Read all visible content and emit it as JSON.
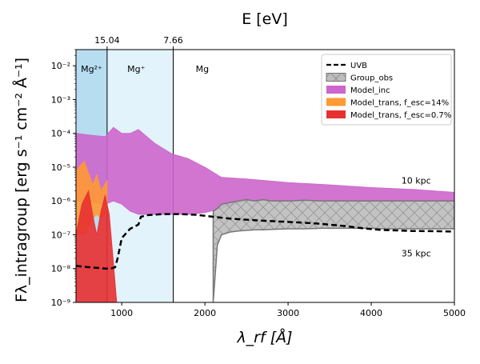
{
  "chart_data": {
    "type": "area",
    "xlabel": "λ_rf [Å]",
    "ylabel": "Fλ_intragroup [erg s⁻¹ cm⁻² Å⁻¹]",
    "top_axis_label": "E [eV]",
    "top_ticks": [
      {
        "label": "15.04",
        "x": 824
      },
      {
        "label": "7.66",
        "x": 1619
      }
    ],
    "xlim": [
      450,
      5000
    ],
    "ylim": [
      1e-09,
      0.03
    ],
    "yscale": "log",
    "x_ticks": [
      1000,
      2000,
      3000,
      4000,
      5000
    ],
    "y_ticks": [
      1e-09,
      1e-08,
      1e-07,
      1e-06,
      1e-05,
      0.0001,
      0.001,
      0.01
    ],
    "y_tick_labels": [
      "10⁻⁹",
      "10⁻⁸",
      "10⁻⁷",
      "10⁻⁶",
      "10⁻⁵",
      "10⁻⁴",
      "10⁻³",
      "10⁻²"
    ],
    "grid": false,
    "legend_position": "top-right",
    "regions": [
      {
        "label": "Mg²⁺",
        "x": [
          450,
          824
        ],
        "color": "#b7ddf0"
      },
      {
        "label": "Mg⁺",
        "x": [
          824,
          1619
        ],
        "color": "#e3f3fb"
      },
      {
        "label": "Mg",
        "x": [
          1619,
          5000
        ],
        "color": "#ffffff"
      }
    ],
    "series": [
      {
        "name": "UVB",
        "style": "dashed",
        "color": "#000000",
        "x": [
          450,
          600,
          700,
          800,
          870,
          920,
          950,
          1000,
          1100,
          1200,
          1230,
          1300,
          1500,
          1700,
          1900,
          2100,
          2300,
          2500,
          2700,
          3000,
          3300,
          3500,
          3700,
          3900,
          4100,
          4300,
          4500,
          4700,
          5000
        ],
        "y": [
          1.2e-08,
          1.1e-08,
          1.05e-08,
          1e-08,
          1e-08,
          1.1e-08,
          2e-08,
          8e-08,
          1.5e-07,
          2e-07,
          3.4e-07,
          3.8e-07,
          4.1e-07,
          4.1e-07,
          3.9e-07,
          3.4e-07,
          3e-07,
          2.8e-07,
          2.6e-07,
          2.4e-07,
          2.2e-07,
          2e-07,
          1.8e-07,
          1.55e-07,
          1.4e-07,
          1.35e-07,
          1.3e-07,
          1.28e-07,
          1.25e-07
        ]
      },
      {
        "name": "Group_obs",
        "style": "hatched-band",
        "color": "#b0b0b0",
        "x": [
          2100,
          2150,
          2200,
          2300,
          2400,
          2500,
          2600,
          2700,
          2800,
          3000,
          3200,
          3400,
          3600,
          3800,
          4000,
          4200,
          4400,
          4600,
          4800,
          5000
        ],
        "upper": [
          5e-07,
          6e-07,
          8e-07,
          9e-07,
          1e-06,
          1.1e-06,
          1e-06,
          1.1e-06,
          1e-06,
          1e-06,
          1.05e-06,
          1e-06,
          1e-06,
          1e-06,
          1e-06,
          1e-06,
          1e-06,
          1e-06,
          1e-06,
          1e-06
        ],
        "lower": [
          1e-09,
          5e-08,
          1e-07,
          1.2e-07,
          1.3e-07,
          1.35e-07,
          1.4e-07,
          1.4e-07,
          1.45e-07,
          1.5e-07,
          1.5e-07,
          1.55e-07,
          1.55e-07,
          1.55e-07,
          1.55e-07,
          1.5e-07,
          1.5e-07,
          1.5e-07,
          1.5e-07,
          1.5e-07
        ]
      },
      {
        "name": "Model_inc",
        "style": "band",
        "color": "#cc66cc",
        "x": [
          450,
          600,
          800,
          900,
          1000,
          1100,
          1200,
          1400,
          1600,
          1800,
          2000,
          2200,
          2500,
          3000,
          3500,
          4000,
          4500,
          5000
        ],
        "upper": [
          0.0001,
          9e-05,
          8e-05,
          0.00015,
          0.0001,
          0.0001,
          0.00013,
          5e-05,
          2.5e-05,
          1.8e-05,
          1e-05,
          5e-06,
          4.5e-06,
          3.5e-06,
          3e-06,
          2.5e-06,
          2.2e-06,
          1.8e-06
        ],
        "lower": [
          1e-06,
          9e-07,
          8e-07,
          1e-06,
          8e-07,
          5e-07,
          4e-07,
          4e-07,
          4e-07,
          4e-07,
          4.5e-07,
          6e-07,
          1e-06,
          1e-06,
          1e-06,
          1e-06,
          1e-06,
          1e-06
        ]
      },
      {
        "name": "Model_trans, f_esc=14%",
        "style": "band",
        "color": "#ff9933",
        "x": [
          450,
          550,
          650,
          700,
          750,
          824
        ],
        "upper": [
          8e-06,
          1.5e-05,
          3e-06,
          6e-06,
          2e-06,
          4e-06
        ],
        "lower": [
          1e-07,
          1e-07,
          3e-07,
          4e-07,
          3e-07,
          5e-07
        ]
      },
      {
        "name": "Model_trans, f_esc=0.7%",
        "style": "band",
        "color": "#e83030",
        "x": [
          450,
          520,
          600,
          660,
          700,
          750,
          800,
          850,
          900,
          940
        ],
        "upper": [
          1e-07,
          8e-07,
          2e-06,
          3e-07,
          1e-07,
          5e-07,
          1.5e-06,
          4e-07,
          1.5e-08,
          1e-09
        ],
        "lower": [
          1e-09,
          1e-09,
          1e-09,
          1e-09,
          1e-09,
          1e-09,
          1e-09,
          1e-09,
          1e-09,
          1e-09
        ]
      }
    ],
    "annotations": [
      {
        "text": "10 kpc",
        "x": 4540,
        "y": 3.3e-06
      },
      {
        "text": "35 kpc",
        "x": 4540,
        "y": 2.3e-08
      }
    ]
  }
}
